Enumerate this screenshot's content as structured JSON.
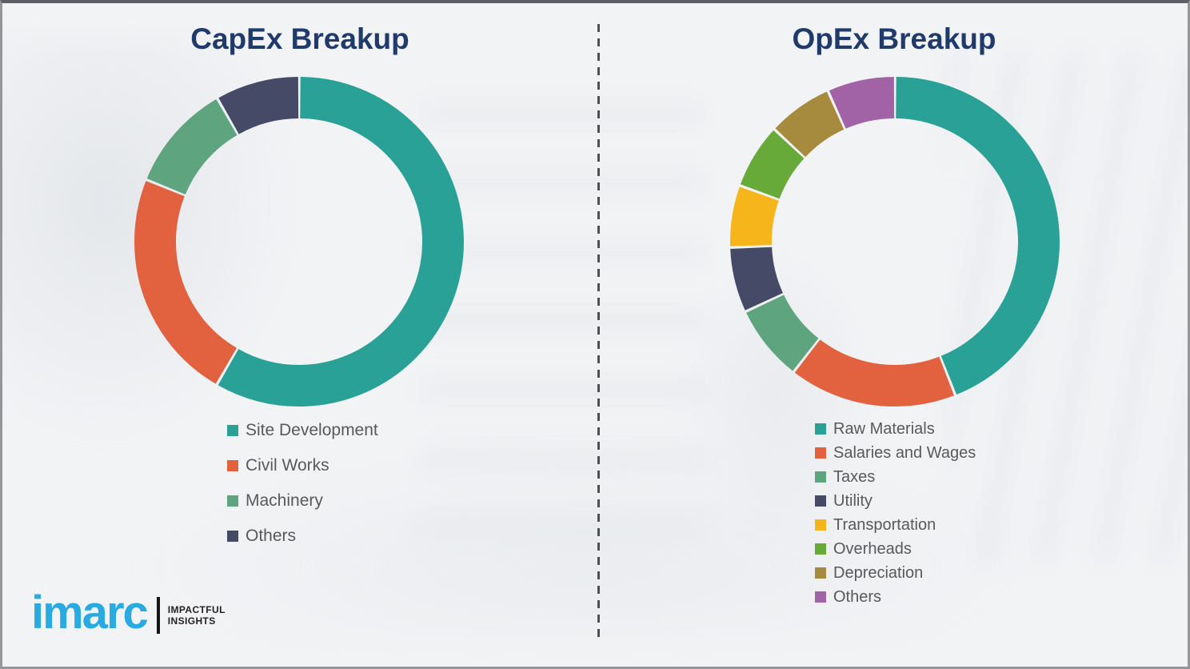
{
  "page": {
    "background_color": "#f2f3f5",
    "border_color": "#94969a",
    "divider_color": "#4f5052"
  },
  "chart_data": [
    {
      "type": "pie",
      "subtype": "donut",
      "title": "CapEx Breakup",
      "labels": [
        "Site Development",
        "Civil Works",
        "Machinery",
        "Others"
      ],
      "values": [
        58.3,
        22.8,
        10.6,
        8.3
      ],
      "values_estimated_from_arcs": true,
      "value_unit": "%",
      "colors": [
        "#2aa196",
        "#e2613e",
        "#5ea57f",
        "#454b66"
      ],
      "start_angle_deg": 0,
      "direction": "clockwise",
      "legend_position": "below-left",
      "data_labels_shown": false
    },
    {
      "type": "pie",
      "subtype": "donut",
      "title": "OpEx Breakup",
      "labels": [
        "Raw Materials",
        "Salaries and Wages",
        "Taxes",
        "Utility",
        "Transportation",
        "Overheads",
        "Depreciation",
        "Others"
      ],
      "values": [
        44.0,
        16.5,
        7.5,
        6.4,
        6.1,
        6.4,
        6.4,
        6.7
      ],
      "values_estimated_from_arcs": true,
      "value_unit": "%",
      "colors": [
        "#2aa196",
        "#e2613e",
        "#5ea57f",
        "#454b66",
        "#f6b51b",
        "#68aa3a",
        "#a68a3e",
        "#a263a6"
      ],
      "start_angle_deg": 0,
      "direction": "clockwise",
      "legend_position": "below-left",
      "data_labels_shown": false
    }
  ],
  "titles_color": "#1f3a6b",
  "legend_text_color": "#595959",
  "logo": {
    "brand": "imarc",
    "brand_color": "#29abe2",
    "tagline_line1": "IMPACTFUL",
    "tagline_line2": "INSIGHTS",
    "tagline_color": "#231f20"
  }
}
